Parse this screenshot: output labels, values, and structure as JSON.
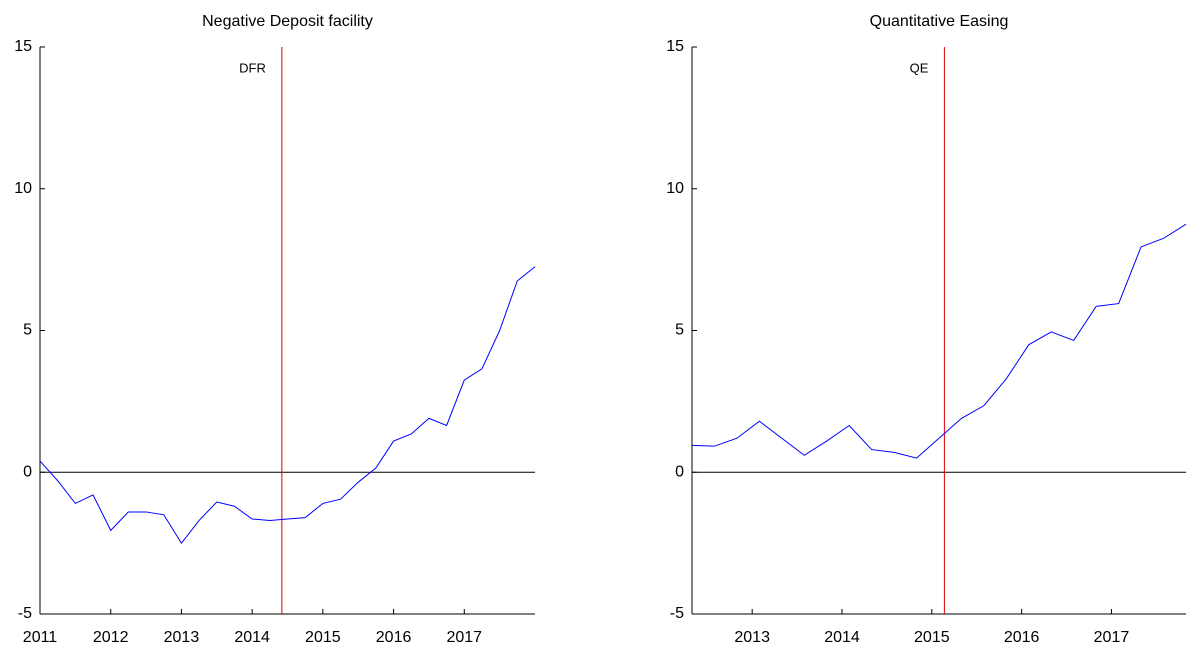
{
  "chart_data": [
    {
      "type": "line",
      "title": "Negative Deposit facility",
      "x": [
        2011,
        2011.25,
        2011.5,
        2011.75,
        2012,
        2012.25,
        2012.5,
        2012.75,
        2013,
        2013.25,
        2013.5,
        2013.75,
        2014,
        2014.25,
        2014.5,
        2014.75,
        2015,
        2015.25,
        2015.5,
        2015.75,
        2016,
        2016.25,
        2016.5,
        2016.75,
        2017,
        2017.25,
        2017.5,
        2017.75,
        2018
      ],
      "values": [
        0.4,
        -0.3,
        -1.1,
        -0.8,
        -2.05,
        -1.4,
        -1.4,
        -1.5,
        -2.5,
        -1.7,
        -1.05,
        -1.2,
        -1.65,
        -1.7,
        -1.65,
        -1.6,
        -1.1,
        -0.95,
        -0.35,
        0.15,
        1.1,
        1.35,
        1.9,
        1.65,
        3.25,
        3.65,
        5.0,
        6.75,
        7.25
      ],
      "color": "#0000ff",
      "xlim": [
        2011,
        2018
      ],
      "xticks": [
        2011,
        2012,
        2013,
        2014,
        2015,
        2016,
        2017
      ],
      "ylim": [
        -5,
        15
      ],
      "yticks": [
        -5,
        0,
        5,
        10,
        15
      ],
      "baseline": 0,
      "annotation": {
        "label": "DFR",
        "x": 2014.42,
        "color": "#dd0000"
      }
    },
    {
      "type": "line",
      "title": "Quantitative Easing",
      "x": [
        2012.33,
        2012.58,
        2012.83,
        2013.08,
        2013.33,
        2013.58,
        2013.83,
        2014.08,
        2014.33,
        2014.58,
        2014.83,
        2015.08,
        2015.33,
        2015.58,
        2015.83,
        2016.08,
        2016.33,
        2016.58,
        2016.83,
        2017.08,
        2017.33,
        2017.58,
        2017.83
      ],
      "values": [
        0.95,
        0.92,
        1.2,
        1.8,
        1.2,
        0.6,
        1.1,
        1.65,
        0.8,
        0.7,
        0.5,
        1.2,
        1.9,
        2.35,
        3.3,
        4.5,
        4.95,
        4.65,
        5.85,
        5.95,
        7.95,
        8.25,
        8.75
      ],
      "color": "#0000ff",
      "xlim": [
        2012.33,
        2017.83
      ],
      "xticks": [
        2013,
        2014,
        2015,
        2016,
        2017
      ],
      "ylim": [
        -5,
        15
      ],
      "yticks": [
        -5,
        0,
        5,
        10,
        15
      ],
      "baseline": 0,
      "annotation": {
        "label": "QE",
        "x": 2015.14,
        "color": "#dd0000"
      }
    }
  ]
}
